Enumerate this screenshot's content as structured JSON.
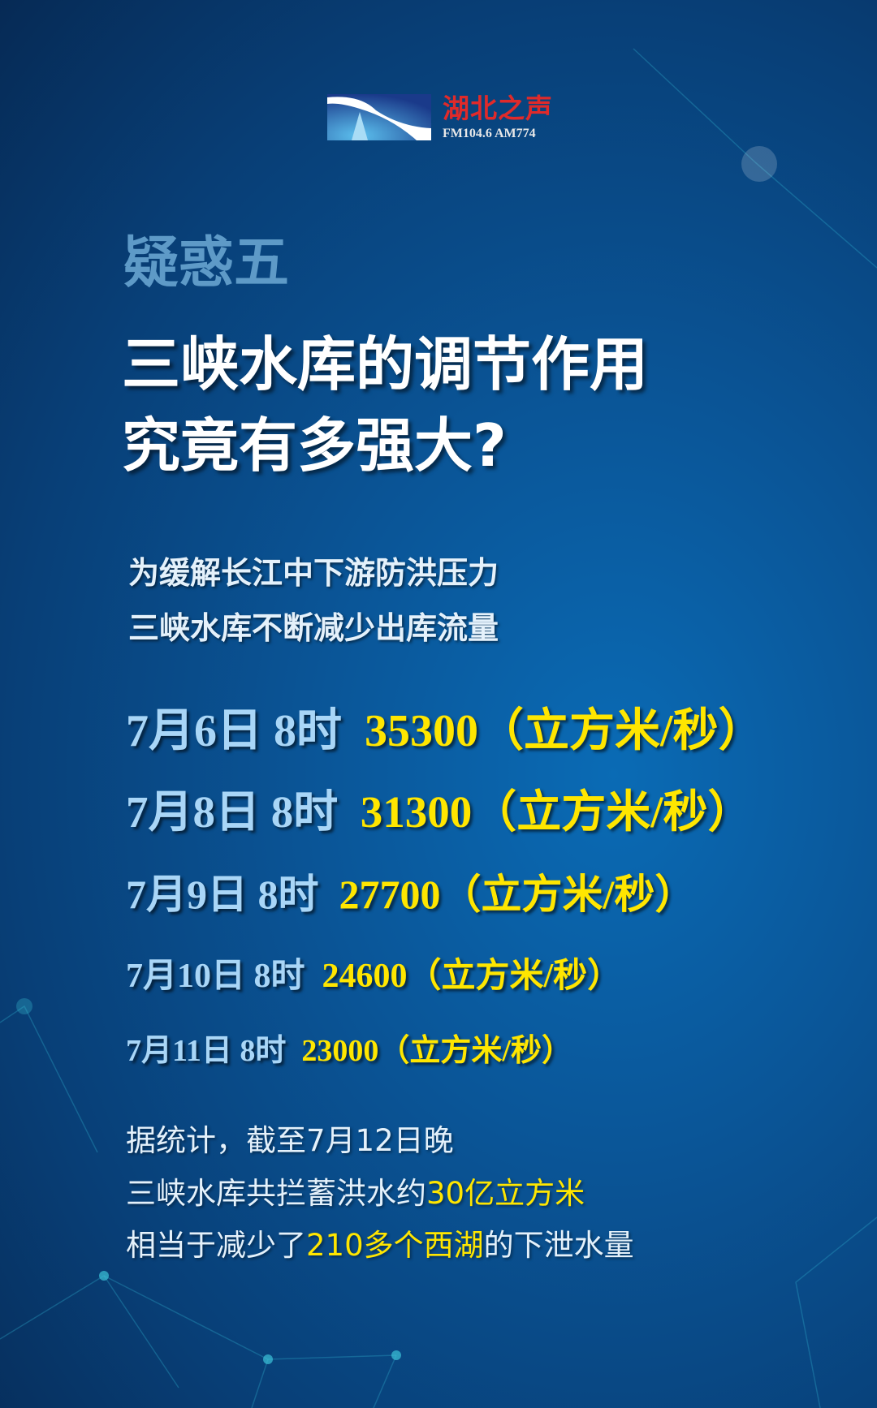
{
  "logo": {
    "name": "湖北之声",
    "frequency": "FM104.6 AM774"
  },
  "question_label": "疑惑五",
  "title": [
    "三峡水库的调节作用",
    "究竟有多强大?"
  ],
  "subtitle": [
    "为缓解长江中下游防洪压力",
    "三峡水库不断减少出库流量"
  ],
  "flows": [
    {
      "time": "7月6日 8时",
      "value": "35300",
      "unit": "（立方米/秒）"
    },
    {
      "time": "7月8日 8时",
      "value": "31300",
      "unit": "（立方米/秒）"
    },
    {
      "time": "7月9日 8时",
      "value": "27700",
      "unit": "（立方米/秒）"
    },
    {
      "time": "7月10日 8时",
      "value": "24600",
      "unit": "（立方米/秒）"
    },
    {
      "time": "7月11日 8时",
      "value": "23000",
      "unit": "（立方米/秒）"
    }
  ],
  "summary": {
    "line1": "据统计，截至7月12日晚",
    "line2_pre": "三峡水库共拦蓄洪水约",
    "line2_hl": "30亿立方米",
    "line3_pre": "相当于减少了",
    "line3_hl": "210多个西湖",
    "line3_post": "的下泄水量"
  },
  "colors": {
    "highlight": "#ffe600",
    "date": "#a9d6f7",
    "logo_red": "#e02a2a"
  }
}
